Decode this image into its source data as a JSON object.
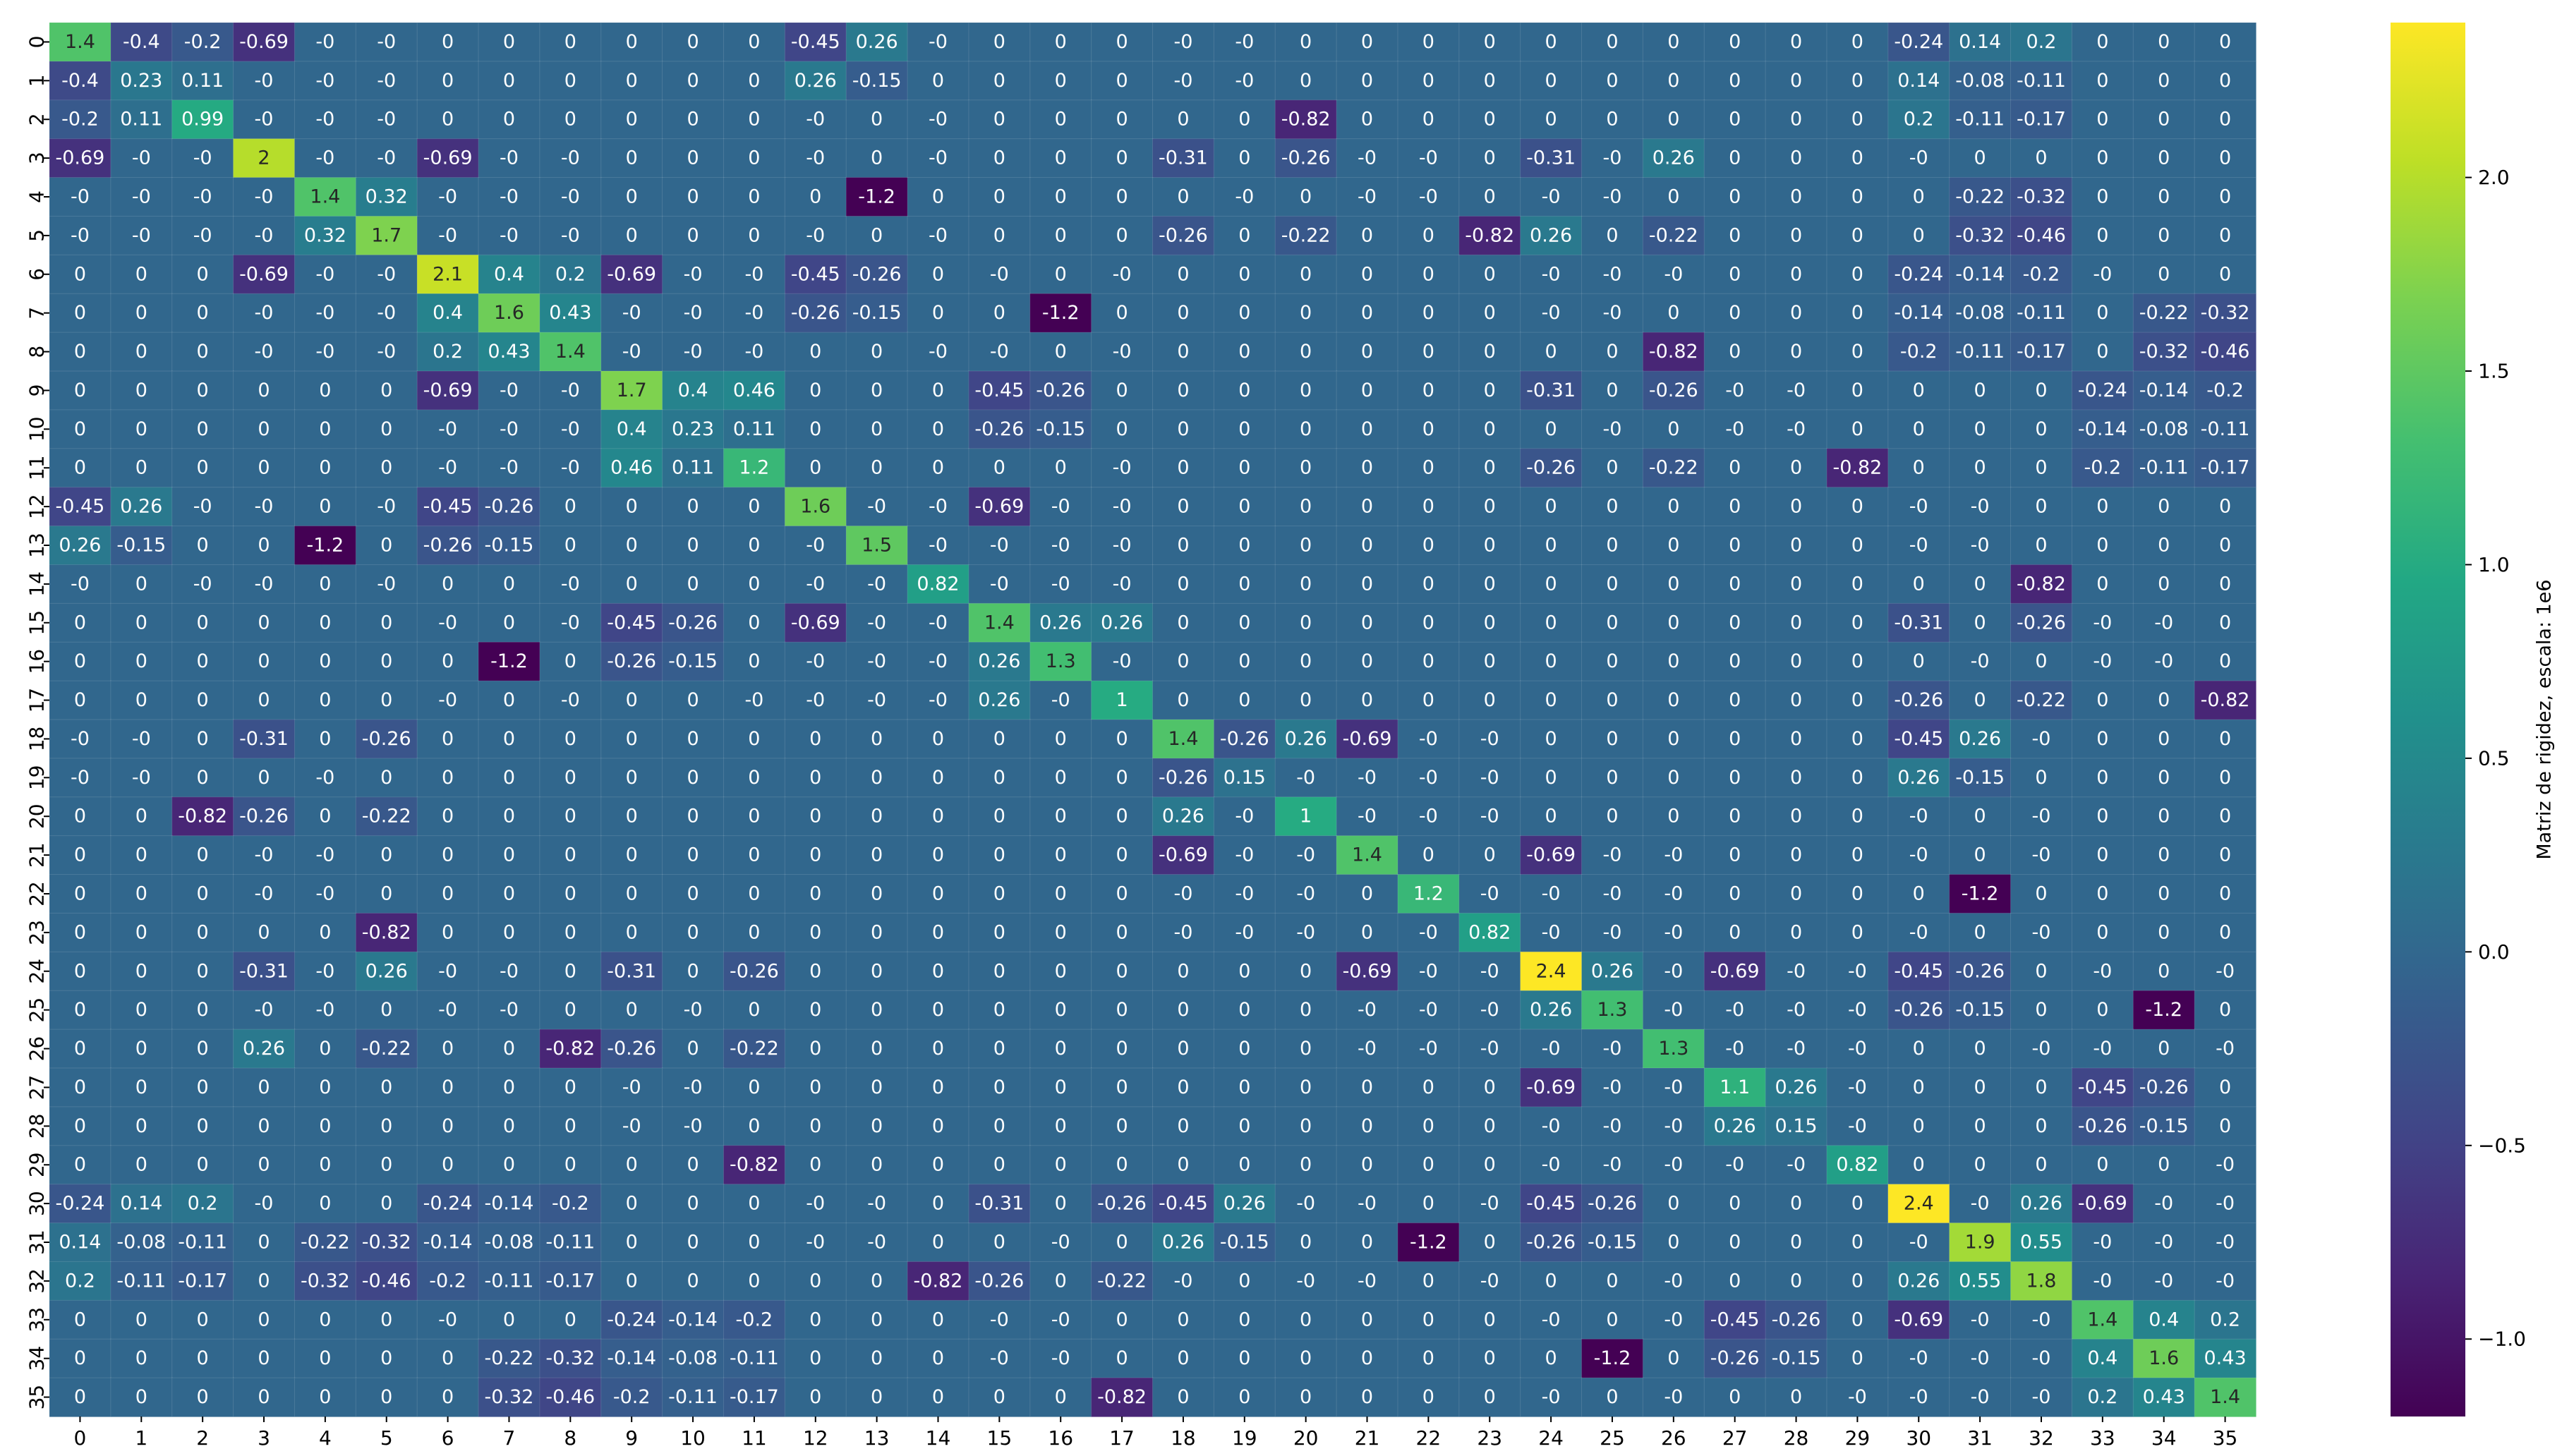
{
  "chart_data": {
    "type": "heatmap",
    "title": "",
    "xlabel": "",
    "ylabel": "",
    "x_labels": [
      "0",
      "1",
      "2",
      "3",
      "4",
      "5",
      "6",
      "7",
      "8",
      "9",
      "10",
      "11",
      "12",
      "13",
      "14",
      "15",
      "16",
      "17",
      "18",
      "19",
      "20",
      "21",
      "22",
      "23",
      "24",
      "25",
      "26",
      "27",
      "28",
      "29",
      "30",
      "31",
      "32",
      "33",
      "34",
      "35"
    ],
    "y_labels": [
      "0",
      "1",
      "2",
      "3",
      "4",
      "5",
      "6",
      "7",
      "8",
      "9",
      "10",
      "11",
      "12",
      "13",
      "14",
      "15",
      "16",
      "17",
      "18",
      "19",
      "20",
      "21",
      "22",
      "23",
      "24",
      "25",
      "26",
      "27",
      "28",
      "29",
      "30",
      "31",
      "32",
      "33",
      "34",
      "35"
    ],
    "colormap": "viridis",
    "vmin": -1.2,
    "vmax": 2.4,
    "colorbar_label": "Matriz de rigidez, escala: 1e6",
    "colorbar_ticks": [
      2.0,
      1.5,
      1.0,
      0.5,
      0.0,
      -0.5,
      -1.0
    ],
    "colorbar_tick_labels": [
      "2.0",
      "1.5",
      "1.0",
      "0.5",
      "0.0",
      "−0.5",
      "−1.0"
    ],
    "rows": [
      [
        "1.4",
        "-0.4",
        "-0.2",
        "-0.69",
        "-0",
        "-0",
        "0",
        "0",
        "0",
        "0",
        "0",
        "0",
        "-0.45",
        "0.26",
        "-0",
        "0",
        "0",
        "0",
        "-0",
        "-0",
        "0",
        "0",
        "0",
        "0",
        "0",
        "0",
        "0",
        "0",
        "0",
        "0",
        "-0.24",
        "0.14",
        "0.2",
        "0",
        "0",
        "0"
      ],
      [
        "-0.4",
        "0.23",
        "0.11",
        "-0",
        "-0",
        "-0",
        "0",
        "0",
        "0",
        "0",
        "0",
        "0",
        "0.26",
        "-0.15",
        "0",
        "0",
        "0",
        "0",
        "-0",
        "-0",
        "0",
        "0",
        "0",
        "0",
        "0",
        "0",
        "0",
        "0",
        "0",
        "0",
        "0.14",
        "-0.08",
        "-0.11",
        "0",
        "0",
        "0"
      ],
      [
        "-0.2",
        "0.11",
        "0.99",
        "-0",
        "-0",
        "-0",
        "0",
        "0",
        "0",
        "0",
        "0",
        "0",
        "-0",
        "0",
        "-0",
        "0",
        "0",
        "0",
        "0",
        "0",
        "-0.82",
        "0",
        "0",
        "0",
        "0",
        "0",
        "0",
        "0",
        "0",
        "0",
        "0.2",
        "-0.11",
        "-0.17",
        "0",
        "0",
        "0"
      ],
      [
        "-0.69",
        "-0",
        "-0",
        "2",
        "-0",
        "-0",
        "-0.69",
        "-0",
        "-0",
        "0",
        "0",
        "0",
        "-0",
        "0",
        "-0",
        "0",
        "0",
        "0",
        "-0.31",
        "0",
        "-0.26",
        "-0",
        "-0",
        "0",
        "-0.31",
        "-0",
        "0.26",
        "0",
        "0",
        "0",
        "-0",
        "0",
        "0",
        "0",
        "0",
        "0"
      ],
      [
        "-0",
        "-0",
        "-0",
        "-0",
        "1.4",
        "0.32",
        "-0",
        "-0",
        "-0",
        "0",
        "0",
        "0",
        "0",
        "-1.2",
        "0",
        "0",
        "0",
        "0",
        "0",
        "-0",
        "0",
        "-0",
        "-0",
        "0",
        "-0",
        "-0",
        "0",
        "0",
        "0",
        "0",
        "0",
        "-0.22",
        "-0.32",
        "0",
        "0",
        "0"
      ],
      [
        "-0",
        "-0",
        "-0",
        "-0",
        "0.32",
        "1.7",
        "-0",
        "-0",
        "-0",
        "0",
        "0",
        "0",
        "-0",
        "0",
        "-0",
        "0",
        "0",
        "0",
        "-0.26",
        "0",
        "-0.22",
        "0",
        "0",
        "-0.82",
        "0.26",
        "0",
        "-0.22",
        "0",
        "0",
        "0",
        "0",
        "-0.32",
        "-0.46",
        "0",
        "0",
        "0"
      ],
      [
        "0",
        "0",
        "0",
        "-0.69",
        "-0",
        "-0",
        "2.1",
        "0.4",
        "0.2",
        "-0.69",
        "-0",
        "-0",
        "-0.45",
        "-0.26",
        "0",
        "-0",
        "0",
        "-0",
        "0",
        "0",
        "0",
        "0",
        "0",
        "0",
        "-0",
        "-0",
        "-0",
        "0",
        "0",
        "0",
        "-0.24",
        "-0.14",
        "-0.2",
        "-0",
        "0",
        "0"
      ],
      [
        "0",
        "0",
        "0",
        "-0",
        "-0",
        "-0",
        "0.4",
        "1.6",
        "0.43",
        "-0",
        "-0",
        "-0",
        "-0.26",
        "-0.15",
        "0",
        "0",
        "-1.2",
        "0",
        "0",
        "0",
        "0",
        "0",
        "0",
        "0",
        "-0",
        "-0",
        "0",
        "0",
        "0",
        "0",
        "-0.14",
        "-0.08",
        "-0.11",
        "0",
        "-0.22",
        "-0.32"
      ],
      [
        "0",
        "0",
        "0",
        "-0",
        "-0",
        "-0",
        "0.2",
        "0.43",
        "1.4",
        "-0",
        "-0",
        "-0",
        "0",
        "0",
        "-0",
        "-0",
        "0",
        "-0",
        "0",
        "0",
        "0",
        "0",
        "0",
        "0",
        "0",
        "0",
        "-0.82",
        "0",
        "0",
        "0",
        "-0.2",
        "-0.11",
        "-0.17",
        "0",
        "-0.32",
        "-0.46"
      ],
      [
        "0",
        "0",
        "0",
        "0",
        "0",
        "0",
        "-0.69",
        "-0",
        "-0",
        "1.7",
        "0.4",
        "0.46",
        "0",
        "0",
        "0",
        "-0.45",
        "-0.26",
        "0",
        "0",
        "0",
        "0",
        "0",
        "0",
        "0",
        "-0.31",
        "0",
        "-0.26",
        "-0",
        "-0",
        "0",
        "0",
        "0",
        "0",
        "-0.24",
        "-0.14",
        "-0.2"
      ],
      [
        "0",
        "0",
        "0",
        "0",
        "0",
        "0",
        "-0",
        "-0",
        "-0",
        "0.4",
        "0.23",
        "0.11",
        "0",
        "0",
        "0",
        "-0.26",
        "-0.15",
        "0",
        "0",
        "0",
        "0",
        "0",
        "0",
        "0",
        "0",
        "-0",
        "0",
        "-0",
        "-0",
        "0",
        "0",
        "0",
        "0",
        "-0.14",
        "-0.08",
        "-0.11"
      ],
      [
        "0",
        "0",
        "0",
        "0",
        "0",
        "0",
        "-0",
        "-0",
        "-0",
        "0.46",
        "0.11",
        "1.2",
        "0",
        "0",
        "0",
        "0",
        "0",
        "-0",
        "0",
        "0",
        "0",
        "0",
        "0",
        "0",
        "-0.26",
        "0",
        "-0.22",
        "0",
        "0",
        "-0.82",
        "0",
        "0",
        "0",
        "-0.2",
        "-0.11",
        "-0.17"
      ],
      [
        "-0.45",
        "0.26",
        "-0",
        "-0",
        "0",
        "-0",
        "-0.45",
        "-0.26",
        "0",
        "0",
        "0",
        "0",
        "1.6",
        "-0",
        "-0",
        "-0.69",
        "-0",
        "-0",
        "0",
        "0",
        "0",
        "0",
        "0",
        "0",
        "0",
        "0",
        "0",
        "0",
        "0",
        "0",
        "-0",
        "-0",
        "0",
        "0",
        "0",
        "0"
      ],
      [
        "0.26",
        "-0.15",
        "0",
        "0",
        "-1.2",
        "0",
        "-0.26",
        "-0.15",
        "0",
        "0",
        "0",
        "0",
        "-0",
        "1.5",
        "-0",
        "-0",
        "-0",
        "-0",
        "0",
        "0",
        "0",
        "0",
        "0",
        "0",
        "0",
        "0",
        "0",
        "0",
        "0",
        "0",
        "-0",
        "-0",
        "0",
        "0",
        "0",
        "0"
      ],
      [
        "-0",
        "0",
        "-0",
        "-0",
        "0",
        "-0",
        "0",
        "0",
        "-0",
        "0",
        "0",
        "0",
        "-0",
        "-0",
        "0.82",
        "-0",
        "-0",
        "-0",
        "0",
        "0",
        "0",
        "0",
        "0",
        "0",
        "0",
        "0",
        "0",
        "0",
        "0",
        "0",
        "0",
        "0",
        "-0.82",
        "0",
        "0",
        "0"
      ],
      [
        "0",
        "0",
        "0",
        "0",
        "0",
        "0",
        "-0",
        "0",
        "-0",
        "-0.45",
        "-0.26",
        "0",
        "-0.69",
        "-0",
        "-0",
        "1.4",
        "0.26",
        "0.26",
        "0",
        "0",
        "0",
        "0",
        "0",
        "0",
        "0",
        "0",
        "0",
        "0",
        "0",
        "0",
        "-0.31",
        "0",
        "-0.26",
        "-0",
        "-0",
        "0"
      ],
      [
        "0",
        "0",
        "0",
        "0",
        "0",
        "0",
        "0",
        "-1.2",
        "0",
        "-0.26",
        "-0.15",
        "0",
        "-0",
        "-0",
        "-0",
        "0.26",
        "1.3",
        "-0",
        "0",
        "0",
        "0",
        "0",
        "0",
        "0",
        "0",
        "0",
        "0",
        "0",
        "0",
        "0",
        "0",
        "-0",
        "0",
        "-0",
        "-0",
        "0"
      ],
      [
        "0",
        "0",
        "0",
        "0",
        "0",
        "0",
        "-0",
        "0",
        "-0",
        "0",
        "0",
        "-0",
        "-0",
        "-0",
        "-0",
        "0.26",
        "-0",
        "1",
        "0",
        "0",
        "0",
        "0",
        "0",
        "0",
        "0",
        "0",
        "0",
        "0",
        "0",
        "0",
        "-0.26",
        "0",
        "-0.22",
        "0",
        "0",
        "-0.82"
      ],
      [
        "-0",
        "-0",
        "0",
        "-0.31",
        "0",
        "-0.26",
        "0",
        "0",
        "0",
        "0",
        "0",
        "0",
        "0",
        "0",
        "0",
        "0",
        "0",
        "0",
        "1.4",
        "-0.26",
        "0.26",
        "-0.69",
        "-0",
        "-0",
        "0",
        "0",
        "0",
        "0",
        "0",
        "0",
        "-0.45",
        "0.26",
        "-0",
        "0",
        "0",
        "0"
      ],
      [
        "-0",
        "-0",
        "0",
        "0",
        "-0",
        "0",
        "0",
        "0",
        "0",
        "0",
        "0",
        "0",
        "0",
        "0",
        "0",
        "0",
        "0",
        "0",
        "-0.26",
        "0.15",
        "-0",
        "-0",
        "-0",
        "-0",
        "0",
        "0",
        "0",
        "0",
        "0",
        "0",
        "0.26",
        "-0.15",
        "0",
        "0",
        "0",
        "0"
      ],
      [
        "0",
        "0",
        "-0.82",
        "-0.26",
        "0",
        "-0.22",
        "0",
        "0",
        "0",
        "0",
        "0",
        "0",
        "0",
        "0",
        "0",
        "0",
        "0",
        "0",
        "0.26",
        "-0",
        "1",
        "-0",
        "-0",
        "-0",
        "0",
        "0",
        "0",
        "0",
        "0",
        "0",
        "-0",
        "0",
        "-0",
        "0",
        "0",
        "0"
      ],
      [
        "0",
        "0",
        "0",
        "-0",
        "-0",
        "0",
        "0",
        "0",
        "0",
        "0",
        "0",
        "0",
        "0",
        "0",
        "0",
        "0",
        "0",
        "0",
        "-0.69",
        "-0",
        "-0",
        "1.4",
        "0",
        "0",
        "-0.69",
        "-0",
        "-0",
        "0",
        "0",
        "0",
        "-0",
        "0",
        "-0",
        "0",
        "0",
        "0"
      ],
      [
        "0",
        "0",
        "0",
        "-0",
        "-0",
        "0",
        "0",
        "0",
        "0",
        "0",
        "0",
        "0",
        "0",
        "0",
        "0",
        "0",
        "0",
        "0",
        "-0",
        "-0",
        "-0",
        "0",
        "1.2",
        "-0",
        "-0",
        "-0",
        "-0",
        "0",
        "0",
        "0",
        "0",
        "-1.2",
        "0",
        "0",
        "0",
        "0"
      ],
      [
        "0",
        "0",
        "0",
        "0",
        "0",
        "-0.82",
        "0",
        "0",
        "0",
        "0",
        "0",
        "0",
        "0",
        "0",
        "0",
        "0",
        "0",
        "0",
        "-0",
        "-0",
        "-0",
        "0",
        "-0",
        "0.82",
        "-0",
        "-0",
        "-0",
        "0",
        "0",
        "0",
        "-0",
        "0",
        "-0",
        "0",
        "0",
        "0"
      ],
      [
        "0",
        "0",
        "0",
        "-0.31",
        "-0",
        "0.26",
        "-0",
        "-0",
        "0",
        "-0.31",
        "0",
        "-0.26",
        "0",
        "0",
        "0",
        "0",
        "0",
        "0",
        "0",
        "0",
        "0",
        "-0.69",
        "-0",
        "-0",
        "2.4",
        "0.26",
        "-0",
        "-0.69",
        "-0",
        "-0",
        "-0.45",
        "-0.26",
        "0",
        "-0",
        "0",
        "-0"
      ],
      [
        "0",
        "0",
        "0",
        "-0",
        "-0",
        "0",
        "-0",
        "-0",
        "0",
        "0",
        "-0",
        "0",
        "0",
        "0",
        "0",
        "0",
        "0",
        "0",
        "0",
        "0",
        "0",
        "-0",
        "-0",
        "-0",
        "0.26",
        "1.3",
        "-0",
        "-0",
        "-0",
        "-0",
        "-0.26",
        "-0.15",
        "0",
        "0",
        "-1.2",
        "0"
      ],
      [
        "0",
        "0",
        "0",
        "0.26",
        "0",
        "-0.22",
        "0",
        "0",
        "-0.82",
        "-0.26",
        "0",
        "-0.22",
        "0",
        "0",
        "0",
        "0",
        "0",
        "0",
        "0",
        "0",
        "0",
        "-0",
        "-0",
        "-0",
        "-0",
        "-0",
        "1.3",
        "-0",
        "-0",
        "-0",
        "0",
        "0",
        "-0",
        "-0",
        "0",
        "-0"
      ],
      [
        "0",
        "0",
        "0",
        "0",
        "0",
        "0",
        "0",
        "0",
        "0",
        "-0",
        "-0",
        "0",
        "0",
        "0",
        "0",
        "0",
        "0",
        "0",
        "0",
        "0",
        "0",
        "0",
        "0",
        "0",
        "-0.69",
        "-0",
        "-0",
        "1.1",
        "0.26",
        "-0",
        "0",
        "0",
        "0",
        "-0.45",
        "-0.26",
        "0"
      ],
      [
        "0",
        "0",
        "0",
        "0",
        "0",
        "0",
        "0",
        "0",
        "0",
        "-0",
        "-0",
        "0",
        "0",
        "0",
        "0",
        "0",
        "0",
        "0",
        "0",
        "0",
        "0",
        "0",
        "0",
        "0",
        "-0",
        "-0",
        "-0",
        "0.26",
        "0.15",
        "-0",
        "0",
        "0",
        "0",
        "-0.26",
        "-0.15",
        "0"
      ],
      [
        "0",
        "0",
        "0",
        "0",
        "0",
        "0",
        "0",
        "0",
        "0",
        "0",
        "0",
        "-0.82",
        "0",
        "0",
        "0",
        "0",
        "0",
        "0",
        "0",
        "0",
        "0",
        "0",
        "0",
        "0",
        "-0",
        "-0",
        "-0",
        "-0",
        "-0",
        "0.82",
        "0",
        "0",
        "0",
        "0",
        "0",
        "-0"
      ],
      [
        "-0.24",
        "0.14",
        "0.2",
        "-0",
        "0",
        "0",
        "-0.24",
        "-0.14",
        "-0.2",
        "0",
        "0",
        "0",
        "-0",
        "-0",
        "0",
        "-0.31",
        "0",
        "-0.26",
        "-0.45",
        "0.26",
        "-0",
        "-0",
        "0",
        "-0",
        "-0.45",
        "-0.26",
        "0",
        "0",
        "0",
        "0",
        "2.4",
        "-0",
        "0.26",
        "-0.69",
        "-0",
        "-0"
      ],
      [
        "0.14",
        "-0.08",
        "-0.11",
        "0",
        "-0.22",
        "-0.32",
        "-0.14",
        "-0.08",
        "-0.11",
        "0",
        "0",
        "0",
        "-0",
        "-0",
        "0",
        "0",
        "-0",
        "0",
        "0.26",
        "-0.15",
        "0",
        "0",
        "-1.2",
        "0",
        "-0.26",
        "-0.15",
        "0",
        "0",
        "0",
        "0",
        "-0",
        "1.9",
        "0.55",
        "-0",
        "-0",
        "-0"
      ],
      [
        "0.2",
        "-0.11",
        "-0.17",
        "0",
        "-0.32",
        "-0.46",
        "-0.2",
        "-0.11",
        "-0.17",
        "0",
        "0",
        "0",
        "0",
        "0",
        "-0.82",
        "-0.26",
        "0",
        "-0.22",
        "-0",
        "0",
        "-0",
        "-0",
        "0",
        "-0",
        "0",
        "0",
        "-0",
        "0",
        "0",
        "0",
        "0.26",
        "0.55",
        "1.8",
        "-0",
        "-0",
        "-0"
      ],
      [
        "0",
        "0",
        "0",
        "0",
        "0",
        "0",
        "-0",
        "0",
        "0",
        "-0.24",
        "-0.14",
        "-0.2",
        "0",
        "0",
        "0",
        "-0",
        "-0",
        "0",
        "0",
        "0",
        "0",
        "0",
        "0",
        "0",
        "-0",
        "0",
        "-0",
        "-0.45",
        "-0.26",
        "0",
        "-0.69",
        "-0",
        "-0",
        "1.4",
        "0.4",
        "0.2"
      ],
      [
        "0",
        "0",
        "0",
        "0",
        "0",
        "0",
        "0",
        "-0.22",
        "-0.32",
        "-0.14",
        "-0.08",
        "-0.11",
        "0",
        "0",
        "0",
        "-0",
        "-0",
        "0",
        "0",
        "0",
        "0",
        "0",
        "0",
        "0",
        "0",
        "-1.2",
        "0",
        "-0.26",
        "-0.15",
        "0",
        "-0",
        "-0",
        "-0",
        "0.4",
        "1.6",
        "0.43"
      ],
      [
        "0",
        "0",
        "0",
        "0",
        "0",
        "0",
        "0",
        "-0.32",
        "-0.46",
        "-0.2",
        "-0.11",
        "-0.17",
        "0",
        "0",
        "0",
        "0",
        "0",
        "-0.82",
        "0",
        "0",
        "0",
        "0",
        "0",
        "0",
        "-0",
        "0",
        "-0",
        "0",
        "0",
        "-0",
        "-0",
        "-0",
        "-0",
        "0.2",
        "0.43",
        "1.4"
      ]
    ]
  }
}
